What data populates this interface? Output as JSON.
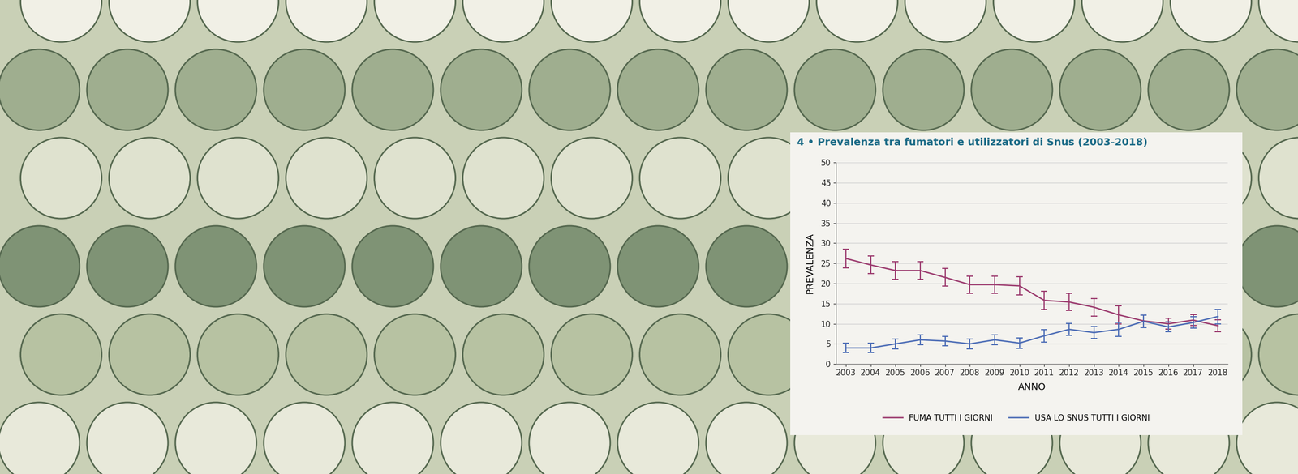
{
  "chart_data": {
    "type": "line",
    "title": "4 • Prevalenza tra fumatori e utilizzatori di Snus (2003-2018)",
    "x_label": "ANNO",
    "y_label": "PREVALENZA",
    "x": [
      2003,
      2004,
      2005,
      2006,
      2007,
      2008,
      2009,
      2010,
      2011,
      2012,
      2013,
      2014,
      2015,
      2016,
      2017,
      2018
    ],
    "series": [
      {
        "name": "FUMA TUTTI I GIORNI",
        "color": "#9b3a6e",
        "marker": "none",
        "line_style": "solid",
        "values": [
          26.2,
          24.6,
          23.2,
          23.2,
          21.5,
          19.7,
          19.7,
          19.4,
          15.8,
          15.4,
          14.1,
          12.2,
          10.7,
          10.0,
          10.9,
          9.5
        ],
        "error": [
          2.3,
          2.2,
          2.2,
          2.2,
          2.2,
          2.1,
          2.1,
          2.3,
          2.2,
          2.1,
          2.2,
          2.2,
          1.5,
          1.3,
          1.4,
          1.5
        ]
      },
      {
        "name": "USA LO SNUS TUTTI I GIORNI",
        "color": "#4a6bb5",
        "marker": "none",
        "line_style": "solid",
        "values": [
          4.0,
          4.0,
          5.0,
          6.0,
          5.7,
          5.0,
          6.0,
          5.2,
          7.0,
          8.6,
          7.8,
          8.6,
          10.6,
          9.2,
          10.3,
          11.8
        ],
        "error": [
          1.2,
          1.2,
          1.2,
          1.2,
          1.2,
          1.2,
          1.2,
          1.3,
          1.5,
          1.5,
          1.5,
          1.7,
          1.5,
          1.2,
          1.4,
          1.8
        ]
      }
    ],
    "xlim": [
      2002.6,
      2018.4
    ],
    "xticks": [
      2003,
      2004,
      2005,
      2006,
      2007,
      2008,
      2009,
      2010,
      2011,
      2012,
      2013,
      2014,
      2015,
      2016,
      2017,
      2018
    ],
    "ylim": [
      0,
      50
    ],
    "yticks": [
      0,
      5,
      10,
      15,
      20,
      25,
      30,
      35,
      40,
      45,
      50
    ],
    "grid": true,
    "legend": "lower center"
  }
}
